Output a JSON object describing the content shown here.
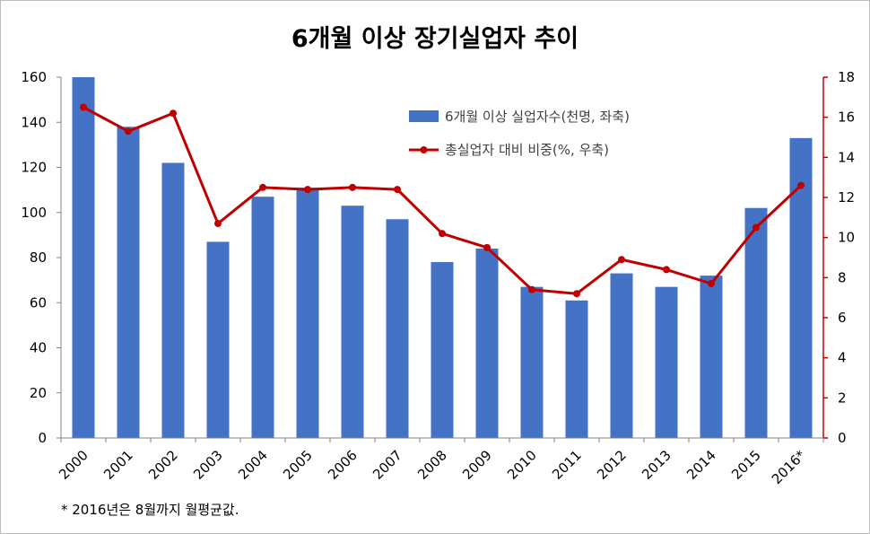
{
  "chart_data": {
    "type": "bar",
    "title": "6개월 이상 장기실업자 추이",
    "categories": [
      "2000",
      "2001",
      "2002",
      "2003",
      "2004",
      "2005",
      "2006",
      "2007",
      "2008",
      "2009",
      "2010",
      "2011",
      "2012",
      "2013",
      "2014",
      "2015",
      "2016*"
    ],
    "series": [
      {
        "name": "6개월 이상 실업자수(천명, 좌축)",
        "type": "bar",
        "axis": "left",
        "color": "#4472c4",
        "values": [
          160,
          138,
          122,
          87,
          107,
          111,
          103,
          97,
          78,
          84,
          67,
          61,
          73,
          67,
          72,
          102,
          133
        ]
      },
      {
        "name": "총실업자 대비 비중(%, 우축)",
        "type": "line",
        "axis": "right",
        "color": "#c00000",
        "values": [
          16.5,
          15.3,
          16.2,
          10.7,
          12.5,
          12.4,
          12.5,
          12.4,
          10.2,
          9.5,
          7.4,
          7.2,
          8.9,
          8.4,
          7.7,
          10.5,
          12.6
        ]
      }
    ],
    "y_left": {
      "ylim": [
        0,
        160
      ],
      "ticks": [
        "0",
        "20",
        "40",
        "60",
        "80",
        "100",
        "120",
        "140",
        "160"
      ]
    },
    "y_right": {
      "ylim": [
        0,
        18
      ],
      "ticks": [
        "0",
        "2",
        "4",
        "6",
        "8",
        "10",
        "12",
        "14",
        "16",
        "18"
      ],
      "color": "#c00000"
    },
    "grid": false,
    "legend_position": "top-right",
    "footnote": "* 2016년은 8월까지 월평균값."
  }
}
